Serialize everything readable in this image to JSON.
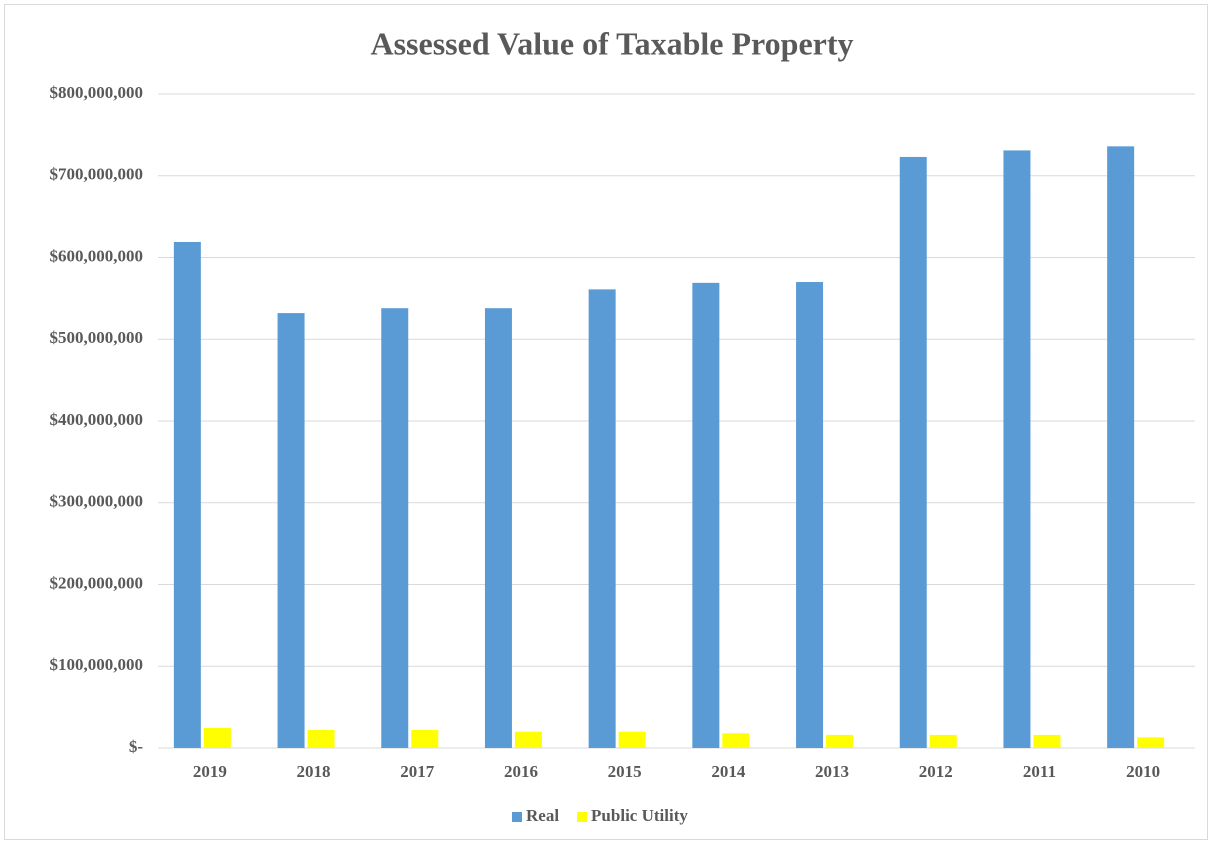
{
  "chart_data": {
    "type": "bar",
    "title": "Assessed Value of Taxable Property",
    "categories": [
      "2019",
      "2018",
      "2017",
      "2016",
      "2015",
      "2014",
      "2013",
      "2012",
      "2011",
      "2010"
    ],
    "series": [
      {
        "name": "Real",
        "color": "#5b9bd5",
        "values": [
          619000000,
          532000000,
          538000000,
          538000000,
          561000000,
          569000000,
          570000000,
          723000000,
          731000000,
          736000000
        ]
      },
      {
        "name": "Public Utility",
        "color": "#ffff00",
        "values": [
          24500000,
          22000000,
          22000000,
          20000000,
          20000000,
          18000000,
          16000000,
          16000000,
          16000000,
          13000000
        ]
      }
    ],
    "ylim": [
      0,
      800000000
    ],
    "yticks": [
      {
        "value": 0,
        "label": "$-"
      },
      {
        "value": 100000000,
        "label": "$100,000,000"
      },
      {
        "value": 200000000,
        "label": "$200,000,000"
      },
      {
        "value": 300000000,
        "label": "$300,000,000"
      },
      {
        "value": 400000000,
        "label": "$400,000,000"
      },
      {
        "value": 500000000,
        "label": "$500,000,000"
      },
      {
        "value": 600000000,
        "label": "$600,000,000"
      },
      {
        "value": 700000000,
        "label": "$700,000,000"
      },
      {
        "value": 800000000,
        "label": "$800,000,000"
      }
    ],
    "grid": true,
    "legend": "bottom"
  }
}
